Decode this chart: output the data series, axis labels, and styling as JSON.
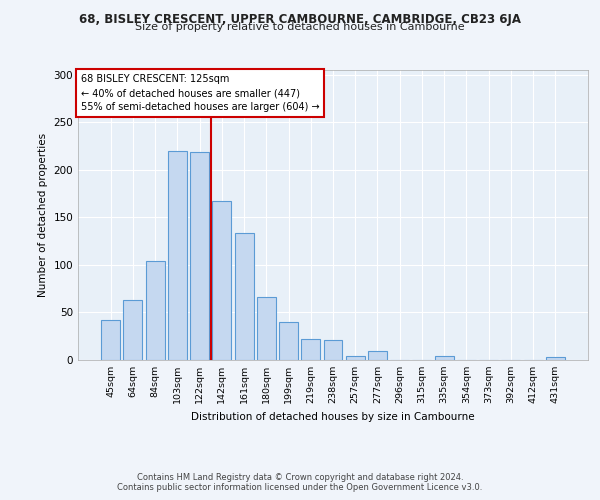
{
  "title_line1": "68, BISLEY CRESCENT, UPPER CAMBOURNE, CAMBRIDGE, CB23 6JA",
  "title_line2": "Size of property relative to detached houses in Cambourne",
  "xlabel": "Distribution of detached houses by size in Cambourne",
  "ylabel": "Number of detached properties",
  "footer_line1": "Contains HM Land Registry data © Crown copyright and database right 2024.",
  "footer_line2": "Contains public sector information licensed under the Open Government Licence v3.0.",
  "categories": [
    "45sqm",
    "64sqm",
    "84sqm",
    "103sqm",
    "122sqm",
    "142sqm",
    "161sqm",
    "180sqm",
    "199sqm",
    "219sqm",
    "238sqm",
    "257sqm",
    "277sqm",
    "296sqm",
    "315sqm",
    "335sqm",
    "354sqm",
    "373sqm",
    "392sqm",
    "412sqm",
    "431sqm"
  ],
  "values": [
    42,
    63,
    104,
    220,
    219,
    167,
    134,
    66,
    40,
    22,
    21,
    4,
    9,
    0,
    0,
    4,
    0,
    0,
    0,
    0,
    3
  ],
  "bar_color": "#c5d8f0",
  "bar_edge_color": "#5b9bd5",
  "property_label": "68 BISLEY CRESCENT: 125sqm",
  "annotation_line1": "← 40% of detached houses are smaller (447)",
  "annotation_line2": "55% of semi-detached houses are larger (604) →",
  "vline_color": "#cc0000",
  "vline_position": 4.5,
  "annotation_box_color": "#ffffff",
  "annotation_box_edge": "#cc0000",
  "ylim": [
    0,
    305
  ],
  "yticks": [
    0,
    50,
    100,
    150,
    200,
    250,
    300
  ],
  "plot_bg_color": "#e8f0f8",
  "fig_bg_color": "#f0f4fa"
}
